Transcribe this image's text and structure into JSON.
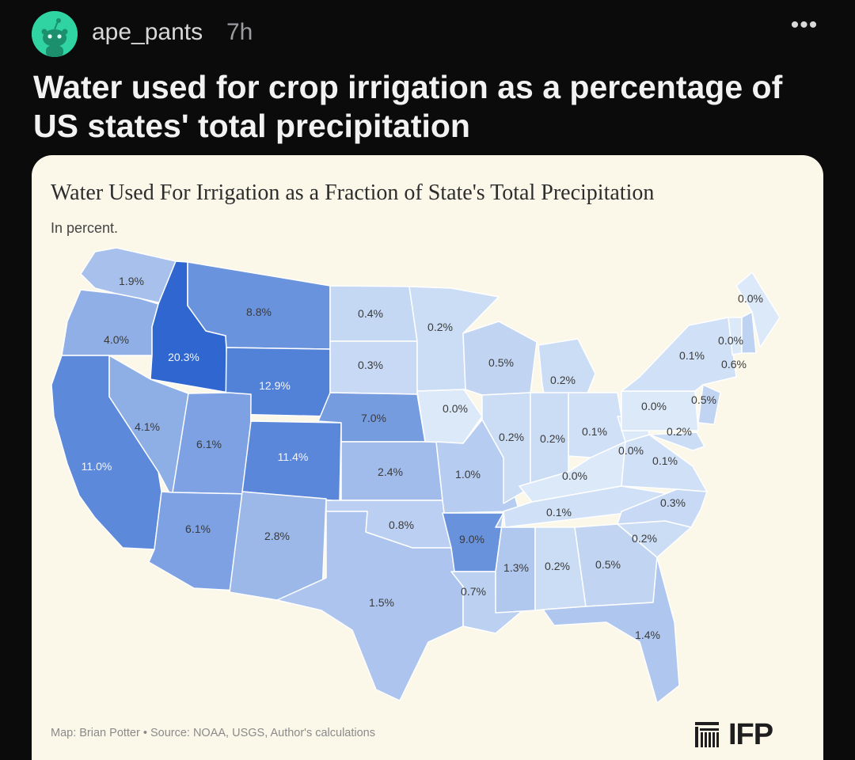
{
  "post": {
    "username": "ape_pants",
    "time": "7h",
    "more_label": "•••",
    "title": "Water used for crop irrigation as a percentage of US states' total precipitation"
  },
  "colors": {
    "background": "#0b0b0c",
    "card": "#fbf8ea",
    "avatar": "#2fd4a2",
    "scale_low": "#dce9f9",
    "scale_high": "#2f66cf"
  },
  "chart_data": {
    "type": "choropleth",
    "title": "Water Used For Irrigation as a Fraction of State's Total Precipitation",
    "subtitle": "In percent.",
    "unit": "%",
    "states": [
      {
        "state": "WA",
        "value": "1.9%"
      },
      {
        "state": "OR",
        "value": "4.0%"
      },
      {
        "state": "ID",
        "value": "20.3%"
      },
      {
        "state": "MT",
        "value": "8.8%"
      },
      {
        "state": "WY",
        "value": "12.9%"
      },
      {
        "state": "CA",
        "value": "11.0%"
      },
      {
        "state": "NV",
        "value": "4.1%"
      },
      {
        "state": "UT",
        "value": "6.1%"
      },
      {
        "state": "AZ",
        "value": "6.1%"
      },
      {
        "state": "CO",
        "value": "11.4%"
      },
      {
        "state": "NM",
        "value": "2.8%"
      },
      {
        "state": "ND",
        "value": "0.4%"
      },
      {
        "state": "SD",
        "value": "0.3%"
      },
      {
        "state": "NE",
        "value": "7.0%"
      },
      {
        "state": "KS",
        "value": "2.4%"
      },
      {
        "state": "OK",
        "value": "0.8%"
      },
      {
        "state": "TX",
        "value": "1.5%"
      },
      {
        "state": "MN",
        "value": "0.2%"
      },
      {
        "state": "IA",
        "value": "0.0%"
      },
      {
        "state": "MO",
        "value": "1.0%"
      },
      {
        "state": "AR",
        "value": "9.0%"
      },
      {
        "state": "LA",
        "value": "0.7%"
      },
      {
        "state": "WI",
        "value": "0.5%"
      },
      {
        "state": "MI",
        "value": "0.2%"
      },
      {
        "state": "IL",
        "value": "0.2%"
      },
      {
        "state": "IN",
        "value": "0.2%"
      },
      {
        "state": "OH",
        "value": "0.1%"
      },
      {
        "state": "KY",
        "value": "0.0%"
      },
      {
        "state": "TN",
        "value": "0.1%"
      },
      {
        "state": "MS",
        "value": "1.3%"
      },
      {
        "state": "AL",
        "value": "0.2%"
      },
      {
        "state": "GA",
        "value": "0.5%"
      },
      {
        "state": "FL",
        "value": "1.4%"
      },
      {
        "state": "SC",
        "value": "0.2%"
      },
      {
        "state": "NC",
        "value": "0.3%"
      },
      {
        "state": "VA",
        "value": "0.1%"
      },
      {
        "state": "WV",
        "value": "0.0%"
      },
      {
        "state": "PA",
        "value": "0.0%"
      },
      {
        "state": "NY",
        "value": "0.1%"
      },
      {
        "state": "NJ",
        "value": "0.5%"
      },
      {
        "state": "MD",
        "value": "0.2%"
      },
      {
        "state": "VT",
        "value": "0.0%"
      },
      {
        "state": "NH",
        "value": "0.6%"
      },
      {
        "state": "ME",
        "value": "0.0%"
      }
    ],
    "credits": "Map: Brian Potter • Source: NOAA, USGS, Author's calculations",
    "logo": "IFP"
  }
}
